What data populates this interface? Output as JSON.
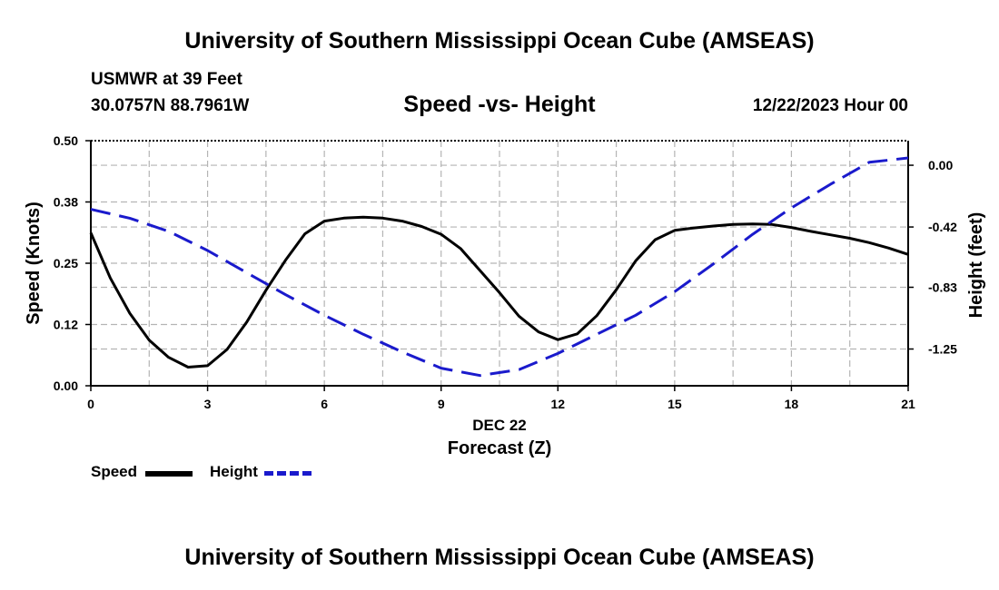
{
  "header": {
    "title": "University of Southern Mississippi Ocean Cube (AMSEAS)",
    "station": "USMWR at 39 Feet",
    "coords": "30.0757N  88.7961W",
    "subtitle": "Speed -vs- Height",
    "date": "12/22/2023 Hour 00"
  },
  "footer": {
    "title": "University of Southern Mississippi Ocean Cube (AMSEAS)"
  },
  "colors": {
    "speed": "#000000",
    "height": "#1a1acc",
    "grid": "#b4b4b4"
  },
  "chart_data": {
    "type": "line",
    "title": "Speed -vs- Height",
    "xlabel": "Forecast (Z)",
    "xlabel_date": "DEC 22",
    "ylabel": "Speed (Knots)",
    "y2label": "Height (feet)",
    "xlim": [
      0,
      21
    ],
    "ylim": [
      0,
      0.5
    ],
    "y2lim": [
      -1.5,
      0.167
    ],
    "xticks": [
      0,
      3,
      6,
      9,
      12,
      15,
      18,
      21
    ],
    "yticks": [
      0.0,
      0.125,
      0.25,
      0.375,
      0.5
    ],
    "ytick_labels": [
      "0.00",
      "0.12",
      "0.25",
      "0.38",
      "0.50"
    ],
    "y2ticks": [
      -1.25,
      -0.83,
      -0.42,
      0.0
    ],
    "y2tick_labels": [
      "-1.25",
      "-0.83",
      "-0.42",
      "0.00"
    ],
    "grid": true,
    "legend": [
      "Speed",
      "Height"
    ],
    "series": [
      {
        "name": "Speed",
        "axis": "left",
        "style": "solid",
        "x": [
          0,
          0.5,
          1,
          1.5,
          2,
          2.5,
          3,
          3.5,
          4,
          4.5,
          5,
          5.5,
          6,
          6.5,
          7,
          7.5,
          8,
          8.5,
          9,
          9.5,
          10,
          10.5,
          11,
          11.5,
          12,
          12.5,
          13,
          13.5,
          14,
          14.5,
          15,
          15.5,
          16,
          16.5,
          17,
          17.5,
          18,
          18.5,
          19,
          19.5,
          20,
          20.5,
          21
        ],
        "values": [
          0.312,
          0.22,
          0.148,
          0.093,
          0.058,
          0.038,
          0.041,
          0.074,
          0.129,
          0.195,
          0.256,
          0.31,
          0.336,
          0.342,
          0.344,
          0.342,
          0.336,
          0.325,
          0.309,
          0.28,
          0.235,
          0.19,
          0.142,
          0.11,
          0.094,
          0.106,
          0.143,
          0.196,
          0.255,
          0.298,
          0.317,
          0.322,
          0.326,
          0.329,
          0.33,
          0.329,
          0.323,
          0.315,
          0.308,
          0.301,
          0.292,
          0.281,
          0.268
        ]
      },
      {
        "name": "Height",
        "axis": "right",
        "style": "dashed",
        "x": [
          0,
          1,
          2,
          3,
          4,
          5,
          6,
          7,
          8,
          9,
          10,
          11,
          12,
          13,
          14,
          15,
          16,
          17,
          18,
          19,
          20,
          21
        ],
        "values": [
          -0.3,
          -0.36,
          -0.45,
          -0.58,
          -0.73,
          -0.88,
          -1.02,
          -1.15,
          -1.27,
          -1.38,
          -1.43,
          -1.39,
          -1.28,
          -1.15,
          -1.02,
          -0.86,
          -0.67,
          -0.47,
          -0.29,
          -0.13,
          0.02,
          0.05
        ]
      }
    ]
  }
}
